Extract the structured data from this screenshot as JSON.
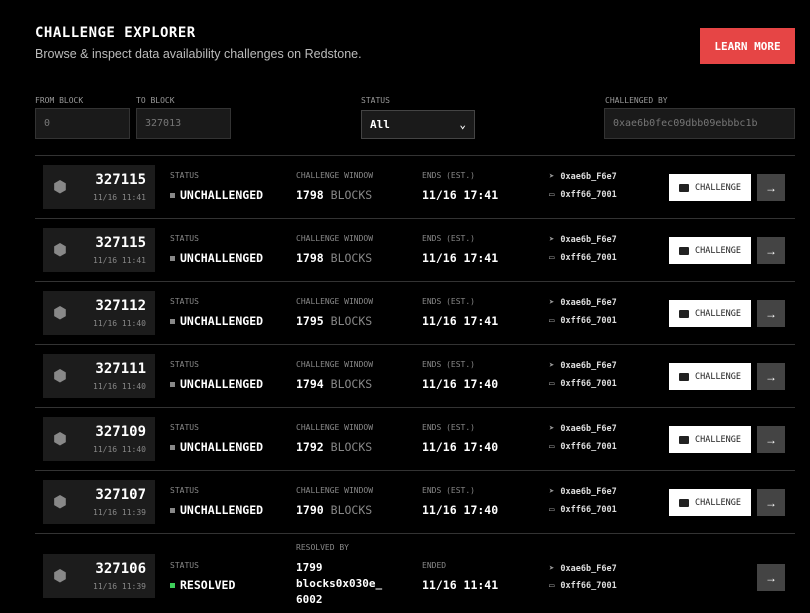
{
  "header": {
    "title": "CHALLENGE EXPLORER",
    "subtitle": "Browse & inspect data availability challenges on Redstone.",
    "learn_more": "LEARN MORE"
  },
  "filters": {
    "from_label": "FROM BLOCK",
    "from_value": "0",
    "to_label": "TO BLOCK",
    "to_value": "327013",
    "status_label": "STATUS",
    "status_value": "All",
    "challenged_label": "CHALLENGED BY",
    "challenged_value": "0xae6b0fec09dbb09ebbbc1b"
  },
  "labels": {
    "status": "STATUS",
    "window": "CHALLENGE WINDOW",
    "ends": "ENDS (EST.)",
    "ended": "ENDED",
    "resolved_by": "RESOLVED BY",
    "blocks": "BLOCKS",
    "challenge": "CHALLENGE",
    "arrow": "→"
  },
  "colors": {
    "accent": "#e64545",
    "resolved": "#3ecf5a"
  },
  "rows": [
    {
      "block": "327115",
      "time": "11/16 11:41",
      "status": "UNCHALLENGED",
      "window": "1798",
      "ends": "11/16 17:41",
      "from": "0xae6b_F6e7",
      "to": "0xff66_7001"
    },
    {
      "block": "327115",
      "time": "11/16 11:41",
      "status": "UNCHALLENGED",
      "window": "1798",
      "ends": "11/16 17:41",
      "from": "0xae6b_F6e7",
      "to": "0xff66_7001"
    },
    {
      "block": "327112",
      "time": "11/16 11:40",
      "status": "UNCHALLENGED",
      "window": "1795",
      "ends": "11/16 17:41",
      "from": "0xae6b_F6e7",
      "to": "0xff66_7001"
    },
    {
      "block": "327111",
      "time": "11/16 11:40",
      "status": "UNCHALLENGED",
      "window": "1794",
      "ends": "11/16 17:40",
      "from": "0xae6b_F6e7",
      "to": "0xff66_7001"
    },
    {
      "block": "327109",
      "time": "11/16 11:40",
      "status": "UNCHALLENGED",
      "window": "1792",
      "ends": "11/16 17:40",
      "from": "0xae6b_F6e7",
      "to": "0xff66_7001"
    },
    {
      "block": "327107",
      "time": "11/16 11:39",
      "status": "UNCHALLENGED",
      "window": "1790",
      "ends": "11/16 17:40",
      "from": "0xae6b_F6e7",
      "to": "0xff66_7001"
    }
  ],
  "resolved_row": {
    "block": "327106",
    "time": "11/16 11:39",
    "status": "RESOLVED",
    "resolved_line1": "1799",
    "resolved_line2": "blocks0x030e_",
    "resolved_line3": "6002",
    "ended": "11/16 11:41",
    "from": "0xae6b_F6e7",
    "to": "0xff66_7001"
  }
}
